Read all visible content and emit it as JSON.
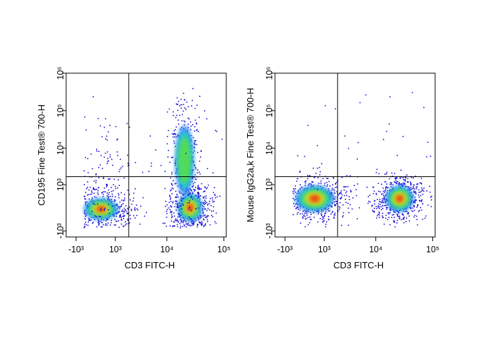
{
  "chart_data": [
    {
      "type": "scatter",
      "x_label": "CD3 FITC-H",
      "y_label": "CD195 Fine Test® 700-H",
      "xscale": "biexponential",
      "yscale": "biexponential",
      "xlim": [
        -1700,
        110000
      ],
      "ylim": [
        -1500,
        1000000
      ],
      "xticks": [
        {
          "value": -1000,
          "label": "-10³"
        },
        {
          "value": 1000,
          "label": "10³"
        },
        {
          "value": 10000,
          "label": "10⁴"
        },
        {
          "value": 100000,
          "label": "10⁵"
        }
      ],
      "yticks": [
        {
          "value": -1000,
          "label": "-10³"
        },
        {
          "value": 1000,
          "label": "10³"
        },
        {
          "value": 10000,
          "label": "10⁴"
        },
        {
          "value": 100000,
          "label": "10⁵"
        },
        {
          "value": 1000000,
          "label": "10⁶"
        }
      ],
      "gate": {
        "x": 2000,
        "y": 1700
      }
    },
    {
      "type": "scatter",
      "x_label": "CD3 FITC-H",
      "y_label": "Mouse IgG2a,k Fine Test® 700-H",
      "xscale": "biexponential",
      "yscale": "biexponential",
      "xlim": [
        -1700,
        110000
      ],
      "ylim": [
        -1500,
        1000000
      ],
      "xticks": [
        {
          "value": -1000,
          "label": "-10³"
        },
        {
          "value": 1000,
          "label": "10³"
        },
        {
          "value": 10000,
          "label": "10⁴"
        },
        {
          "value": 100000,
          "label": "10⁵"
        }
      ],
      "yticks": [
        {
          "value": -1000,
          "label": "-10³"
        },
        {
          "value": 1000,
          "label": "10³"
        },
        {
          "value": 10000,
          "label": "10⁴"
        },
        {
          "value": 100000,
          "label": "10⁵"
        },
        {
          "value": 1000000,
          "label": "10⁶"
        }
      ],
      "gate": {
        "x": 2000,
        "y": 1700
      }
    }
  ]
}
